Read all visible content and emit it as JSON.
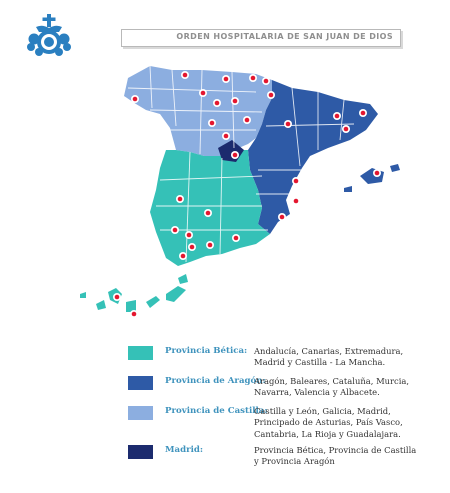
{
  "header": {
    "title": "ORDEN HOSPITALARIA DE SAN JUAN DE DIOS"
  },
  "logo": {
    "icon": "cross-crown-logo-icon",
    "color": "#2a7fc0"
  },
  "colors": {
    "betica": "#35c1b7",
    "aragon": "#2e5aa6",
    "castilla": "#8caee0",
    "madrid": "#1c2b6e",
    "marker": "#e4172f"
  },
  "legend": [
    {
      "id": "betica",
      "name": "Provincia Bética:",
      "color": "#35c1b7",
      "lines": [
        "Andalucía, Canarias, Extremadura,",
        "Madrid y Castilla - La Mancha."
      ]
    },
    {
      "id": "aragon",
      "name": "Provincia de Aragón:",
      "color": "#2e5aa6",
      "lines": [
        "Aragón, Baleares, Cataluña, Murcia,",
        "Navarra, Valencia y Albacete."
      ]
    },
    {
      "id": "castilla",
      "name": "Provincia de Castilla:",
      "color": "#8caee0",
      "lines": [
        "Castilla y León, Galicia, Madrid,",
        "Principado de Asturias, País Vasco,",
        "Cantabria, La Rioja y Guadalajara."
      ]
    },
    {
      "id": "madrid",
      "name": "Madrid:",
      "color": "#1c2b6e",
      "lines": [
        "Provincia Bética, Provincia de Castilla",
        "y Provincia Aragón"
      ]
    }
  ]
}
